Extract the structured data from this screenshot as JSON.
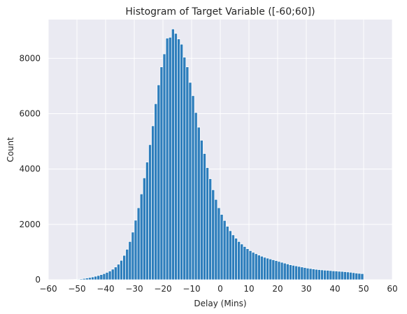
{
  "chart_data": {
    "type": "bar",
    "title": "Histogram of Target Variable ([-60;60])",
    "xlabel": "Delay (Mins)",
    "ylabel": "Count",
    "xlim": [
      -60,
      60
    ],
    "ylim": [
      0,
      9400
    ],
    "xticks": [
      -60,
      -50,
      -40,
      -30,
      -20,
      -10,
      0,
      10,
      20,
      30,
      40,
      50,
      60
    ],
    "yticks": [
      0,
      2000,
      4000,
      6000,
      8000
    ],
    "grid": true,
    "bar_color": "#2e7ebc",
    "background_color": "#eaeaf2",
    "grid_color": "#ffffff",
    "bins": {
      "edges_start": -54,
      "bin_width": 1,
      "values": [
        3,
        5,
        8,
        12,
        20,
        30,
        45,
        62,
        80,
        100,
        125,
        152,
        185,
        220,
        265,
        315,
        380,
        460,
        560,
        700,
        880,
        1100,
        1380,
        1720,
        2150,
        2600,
        3100,
        3680,
        4250,
        4880,
        5560,
        6360,
        7040,
        7690,
        8160,
        8730,
        8760,
        9060,
        8900,
        8700,
        8510,
        8040,
        7690,
        7130,
        6650,
        6040,
        5510,
        5040,
        4560,
        4050,
        3650,
        3250,
        2900,
        2600,
        2360,
        2140,
        1930,
        1770,
        1620,
        1500,
        1380,
        1290,
        1200,
        1120,
        1050,
        990,
        940,
        890,
        850,
        810,
        780,
        750,
        720,
        690,
        660,
        630,
        600,
        570,
        540,
        520,
        500,
        480,
        460,
        440,
        420,
        405,
        390,
        375,
        365,
        355,
        345,
        340,
        330,
        320,
        315,
        305,
        300,
        290,
        280,
        270,
        255,
        240,
        230,
        220
      ]
    }
  }
}
